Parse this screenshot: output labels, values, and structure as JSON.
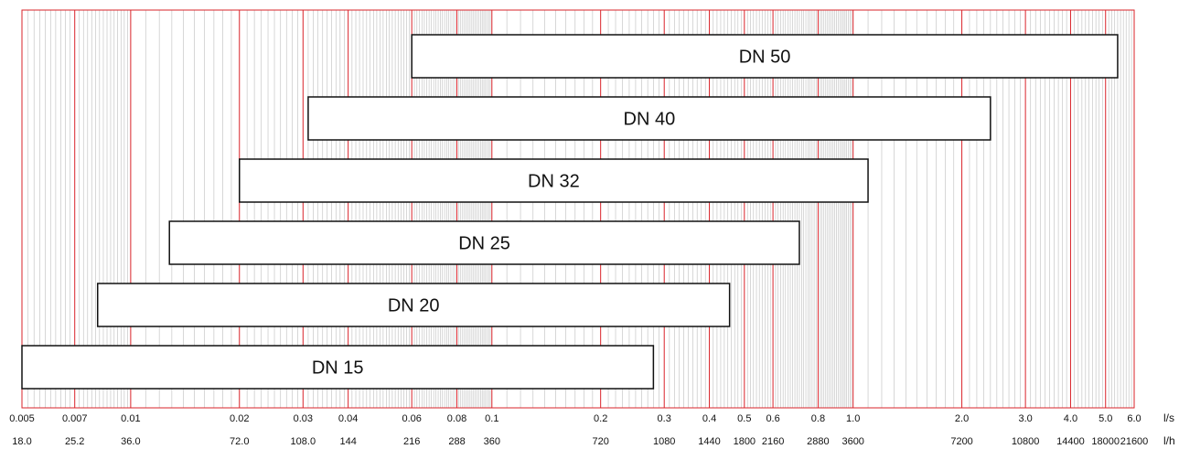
{
  "chart_data": {
    "type": "bar",
    "orientation": "horizontal-range",
    "x_scale": "log",
    "xlim": [
      0.005,
      6.0
    ],
    "grid": true,
    "colors": {
      "major_grid": "#d9232a",
      "minor_grid": "#bdbdbd",
      "bar_fill": "#ffffff",
      "bar_stroke": "#111111"
    },
    "series": [
      {
        "name": "DN 50",
        "min": 0.06,
        "max": 5.4
      },
      {
        "name": "DN 40",
        "min": 0.031,
        "max": 2.4
      },
      {
        "name": "DN 32",
        "min": 0.02,
        "max": 1.1
      },
      {
        "name": "DN 25",
        "min": 0.0128,
        "max": 0.71
      },
      {
        "name": "DN 20",
        "min": 0.0081,
        "max": 0.455
      },
      {
        "name": "DN 15",
        "min": 0.005,
        "max": 0.28
      }
    ],
    "x_ticks_ls": [
      {
        "value": 0.005,
        "label": "0.005"
      },
      {
        "value": 0.007,
        "label": "0.007"
      },
      {
        "value": 0.01,
        "label": "0.01"
      },
      {
        "value": 0.02,
        "label": "0.02"
      },
      {
        "value": 0.03,
        "label": "0.03"
      },
      {
        "value": 0.04,
        "label": "0.04"
      },
      {
        "value": 0.06,
        "label": "0.06"
      },
      {
        "value": 0.08,
        "label": "0.08"
      },
      {
        "value": 0.1,
        "label": "0.1"
      },
      {
        "value": 0.2,
        "label": "0.2"
      },
      {
        "value": 0.3,
        "label": "0.3"
      },
      {
        "value": 0.4,
        "label": "0.4"
      },
      {
        "value": 0.5,
        "label": "0.5"
      },
      {
        "value": 0.6,
        "label": "0.6"
      },
      {
        "value": 0.8,
        "label": "0.8"
      },
      {
        "value": 1.0,
        "label": "1.0"
      },
      {
        "value": 2.0,
        "label": "2.0"
      },
      {
        "value": 3.0,
        "label": "3.0"
      },
      {
        "value": 4.0,
        "label": "4.0"
      },
      {
        "value": 5.0,
        "label": "5.0"
      },
      {
        "value": 6.0,
        "label": "6.0"
      }
    ],
    "x_ticks_lh": [
      {
        "value": 0.005,
        "label": "18.0"
      },
      {
        "value": 0.007,
        "label": "25.2"
      },
      {
        "value": 0.01,
        "label": "36.0"
      },
      {
        "value": 0.02,
        "label": "72.0"
      },
      {
        "value": 0.03,
        "label": "108.0"
      },
      {
        "value": 0.04,
        "label": "144"
      },
      {
        "value": 0.06,
        "label": "216"
      },
      {
        "value": 0.08,
        "label": "288"
      },
      {
        "value": 0.1,
        "label": "360"
      },
      {
        "value": 0.2,
        "label": "720"
      },
      {
        "value": 0.3,
        "label": "1080"
      },
      {
        "value": 0.4,
        "label": "1440"
      },
      {
        "value": 0.5,
        "label": "1800"
      },
      {
        "value": 0.6,
        "label": "2160"
      },
      {
        "value": 0.8,
        "label": "2880"
      },
      {
        "value": 1.0,
        "label": "3600"
      },
      {
        "value": 2.0,
        "label": "7200"
      },
      {
        "value": 3.0,
        "label": "10800"
      },
      {
        "value": 4.0,
        "label": "14400"
      },
      {
        "value": 5.0,
        "label": "18000"
      },
      {
        "value": 6.0,
        "label": "21600"
      }
    ],
    "unit_ls": "l/s",
    "unit_lh": "l/h"
  }
}
